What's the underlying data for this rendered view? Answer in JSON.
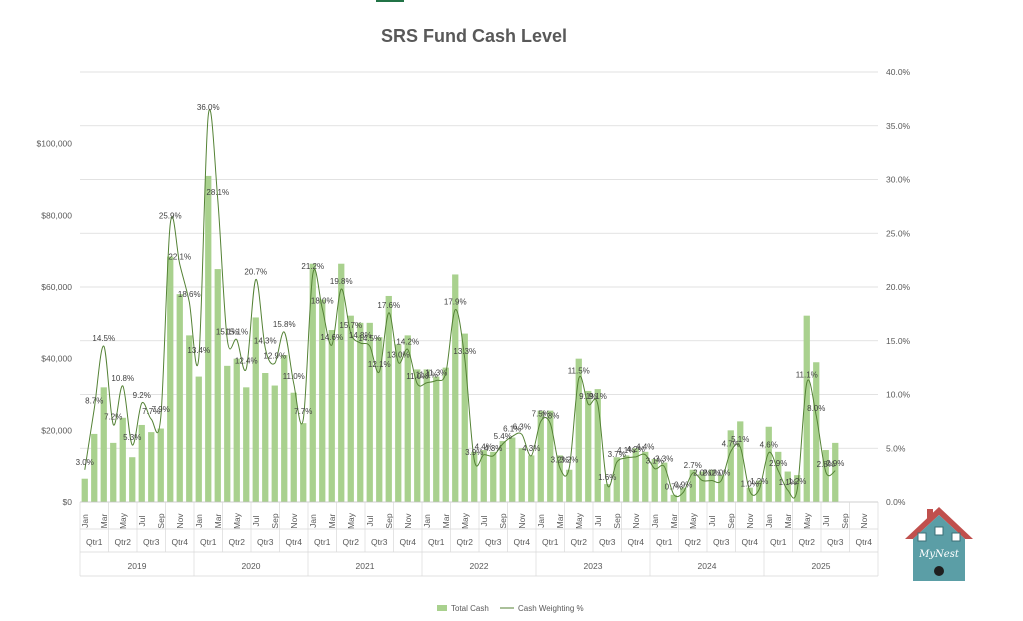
{
  "chart_data": {
    "type": "bar",
    "title": "SRS Fund Cash Level",
    "y_left": {
      "ticks": [
        "$0",
        "$20,000",
        "$40,000",
        "$60,000",
        "$80,000",
        "$100,000"
      ],
      "range": [
        0,
        120000
      ]
    },
    "y_right": {
      "ticks": [
        "0.0%",
        "5.0%",
        "10.0%",
        "15.0%",
        "20.0%",
        "25.0%",
        "30.0%",
        "35.0%",
        "40.0%"
      ],
      "range": [
        0,
        40
      ]
    },
    "month_labels": [
      "Jan",
      "Mar",
      "May",
      "Jul",
      "Sep",
      "Nov"
    ],
    "quarter_labels": [
      "Qtr1",
      "Qtr2",
      "Qtr3",
      "Qtr4"
    ],
    "years": [
      "2019",
      "2020",
      "2021",
      "2022",
      "2023",
      "2024",
      "2025"
    ],
    "series": [
      {
        "name": "Total Cash",
        "color": "#a9d18e",
        "values": [
          6500,
          19000,
          32000,
          16500,
          23500,
          12500,
          21500,
          19500,
          20500,
          68500,
          58000,
          46500,
          35000,
          91000,
          65000,
          38000,
          40000,
          32000,
          51500,
          36000,
          32500,
          41000,
          30500,
          22000,
          66500,
          56500,
          48000,
          66500,
          52000,
          50000,
          50000,
          46000,
          57500,
          44000,
          46500,
          37000,
          37000,
          35000,
          37500,
          63500,
          47000,
          14000,
          14500,
          14000,
          17000,
          18000,
          15000,
          13000,
          25500,
          25500,
          13000,
          9000,
          40000,
          31000,
          31500,
          5000,
          12500,
          13000,
          15000,
          14000,
          12000,
          11000,
          2000,
          4000,
          9000,
          8500,
          9000,
          7500,
          20000,
          22500,
          4000,
          6000,
          21000,
          14000,
          8500,
          7500,
          52000,
          39000,
          14500,
          16500,
          null,
          null,
          null,
          null
        ]
      },
      {
        "name": "Cash Weighting %",
        "color": "#548235",
        "values": [
          3.0,
          8.7,
          14.5,
          7.2,
          10.8,
          5.3,
          9.2,
          7.7,
          7.9,
          25.9,
          22.1,
          18.6,
          13.4,
          36.0,
          28.1,
          15.1,
          15.1,
          12.4,
          20.7,
          14.3,
          12.9,
          15.8,
          11.0,
          7.7,
          21.2,
          18.0,
          14.6,
          19.8,
          15.7,
          14.8,
          14.5,
          12.1,
          17.6,
          13.0,
          14.2,
          11.0,
          11.1,
          11.3,
          12.0,
          17.9,
          13.3,
          3.9,
          4.4,
          4.3,
          5.4,
          6.1,
          6.3,
          4.3,
          7.5,
          7.3,
          3.2,
          3.2,
          11.5,
          9.1,
          9.1,
          1.6,
          3.7,
          4.1,
          4.2,
          4.4,
          3.1,
          3.3,
          0.7,
          0.9,
          2.7,
          2.0,
          2.0,
          2.0,
          4.7,
          5.1,
          1.0,
          1.2,
          4.6,
          2.9,
          1.1,
          1.2,
          11.1,
          8.0,
          2.8,
          2.9,
          null,
          null,
          null,
          null
        ],
        "labels": [
          "3.0%",
          "8.7%",
          "14.5%",
          "7.2%",
          "10.8%",
          "5.3%",
          "9.2%",
          "7.7%",
          "7.9%",
          "25.9%",
          "22.1%",
          "18.6%",
          "13.4%",
          "36.0%",
          "28.1%",
          "15.1%",
          "15.1%",
          "12.4%",
          "20.7%",
          "14.3%",
          "12.9%",
          "15.8%",
          "11.0%",
          "7.7%",
          "21.2%",
          "18.0%",
          "14.6%",
          "19.8%",
          "15.7%",
          "14.8%",
          "14.5%",
          "12.1%",
          "17.6%",
          "13.0%",
          "14.2%",
          "11.0%",
          "11.1%",
          "11.3%",
          "",
          "17.9%",
          "13.3%",
          "3.9%",
          "4.4%",
          "4.3%",
          "5.4%",
          "6.1%",
          "6.3%",
          "4.3%",
          "7.5%",
          "7.3%",
          "3.2%",
          "3.2%",
          "11.5%",
          "9.1%",
          "9.1%",
          "1.6%",
          "3.7%",
          "4.1%",
          "4.2%",
          "4.4%",
          "3.1%",
          "3.3%",
          "0.7%",
          "0.9%",
          "2.7%",
          "2.0%",
          "2.0%",
          "2.0%",
          "4.7%",
          "5.1%",
          "1.0%",
          "1.2%",
          "4.6%",
          "2.9%",
          "1.1%",
          "1.2%",
          "11.1%",
          "8.0%",
          "2.8%",
          "2.9%",
          "",
          "",
          "",
          ""
        ]
      }
    ],
    "legend_position": "bottom",
    "grid": true
  },
  "logo": {
    "text": "MyNest",
    "icon": "birdhouse-icon",
    "roof_color": "#c0504d",
    "body_color": "#5b9ea6"
  }
}
